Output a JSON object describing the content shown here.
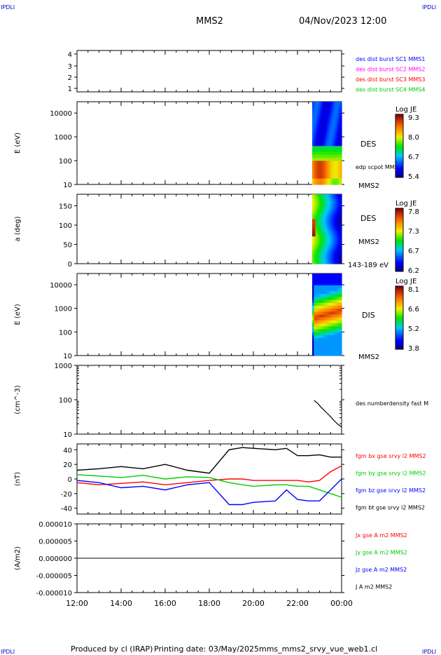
{
  "header": {
    "corner_label": "IPDLI",
    "spacecraft": "MMS2",
    "datetime": "04/Nov/2023 12:00"
  },
  "footer": {
    "produced_by": "Produced by cl (IRAP)",
    "printing_date": "Printing date: 03/May/2025",
    "filename": "mms_mms2_srvy_vue_web1.cl"
  },
  "chart_data": [
    {
      "type": "table",
      "panel": "burst coverage",
      "yticks": [
        "4",
        "3",
        "2",
        "1"
      ],
      "legend": [
        {
          "label": "des dist burst SC1 MMS1",
          "color": "#0000ff"
        },
        {
          "label": "des dist burst SC2 MMS2",
          "color": "#ff00ff"
        },
        {
          "label": "des dist burst SC3 MMS3",
          "color": "#ff0000"
        },
        {
          "label": "des dist burst SC4 MMS4",
          "color": "#00cc00"
        }
      ]
    },
    {
      "type": "heatmap",
      "panel": "DES energy spectrogram",
      "ylabel": "E (eV)",
      "yscale": "log",
      "ylim": [
        10,
        30000
      ],
      "yticks": [
        "10000",
        "1000",
        "100",
        "10"
      ],
      "data_x_range": [
        "22:40",
        "24:00"
      ],
      "right_labels": [
        "DES",
        "edp scpot MMS2",
        "MMS2"
      ],
      "colorbar": {
        "title": "Log JE",
        "ticks": [
          "9.3",
          "8.0",
          "6.7",
          "5.4"
        ]
      }
    },
    {
      "type": "heatmap",
      "panel": "DES pitch angle",
      "ylabel": "a (deg)",
      "ylim": [
        0,
        180
      ],
      "yticks": [
        "150",
        "100",
        "50",
        "0"
      ],
      "data_x_range": [
        "22:40",
        "24:00"
      ],
      "right_labels": [
        "DES",
        "MMS2",
        "143-189 eV"
      ],
      "colorbar": {
        "title": "Log JE",
        "ticks": [
          "7.8",
          "7.3",
          "6.7",
          "6.2"
        ]
      }
    },
    {
      "type": "heatmap",
      "panel": "DIS energy spectrogram",
      "ylabel": "E (eV)",
      "yscale": "log",
      "ylim": [
        10,
        30000
      ],
      "yticks": [
        "10000",
        "1000",
        "100",
        "10"
      ],
      "data_x_range": [
        "22:40",
        "24:00"
      ],
      "right_labels": [
        "DIS",
        "MMS2"
      ],
      "colorbar": {
        "title": "Log JE",
        "ticks": [
          "8.1",
          "6.6",
          "5.2",
          "3.8"
        ]
      }
    },
    {
      "type": "line",
      "panel": "density",
      "ylabel": "(cm^-3)",
      "yscale": "log",
      "ylim": [
        10,
        1000
      ],
      "yticks": [
        "1000",
        "100",
        "10"
      ],
      "series": [
        {
          "name": "des numberdensity fast M",
          "color": "#000000",
          "x": [
            22.75,
            22.9,
            23.05,
            23.2,
            23.35,
            23.5,
            23.65,
            23.8,
            24.0
          ],
          "values": [
            95,
            80,
            62,
            50,
            40,
            32,
            25,
            20,
            16
          ]
        }
      ]
    },
    {
      "type": "line",
      "panel": "magnetic field",
      "ylabel": "(nT)",
      "ylim": [
        -48,
        48
      ],
      "yticks": [
        "40",
        "20",
        "0",
        "-20",
        "-40"
      ],
      "x": [
        12,
        13,
        14,
        15,
        16,
        17,
        18,
        18.9,
        19.5,
        20,
        21,
        21.5,
        22,
        22.5,
        23,
        23.5,
        24
      ],
      "series": [
        {
          "name": "fgm bx gse srvy l2 MMS2",
          "color": "#ff0000",
          "values": [
            -5,
            -8,
            -6,
            -4,
            -8,
            -5,
            -2,
            0,
            0,
            -2,
            -2,
            -2,
            -2,
            -4,
            -2,
            10,
            18
          ]
        },
        {
          "name": "fgm by gse srvy l2 MMS2",
          "color": "#00cc00",
          "values": [
            6,
            4,
            2,
            5,
            0,
            3,
            2,
            -5,
            -8,
            -10,
            -8,
            -8,
            -10,
            -10,
            -15,
            -20,
            -25
          ]
        },
        {
          "name": "fgm bz gse srvy l2 MMS2",
          "color": "#0000ff",
          "values": [
            -2,
            -5,
            -12,
            -10,
            -15,
            -8,
            -5,
            -35,
            -35,
            -32,
            -30,
            -15,
            -28,
            -30,
            -30,
            -15,
            0
          ]
        },
        {
          "name": "fgm bt gse srvy l2 MMS2",
          "color": "#000000",
          "values": [
            12,
            14,
            17,
            14,
            20,
            12,
            8,
            40,
            43,
            42,
            40,
            42,
            32,
            32,
            33,
            30,
            30
          ]
        }
      ]
    },
    {
      "type": "line",
      "panel": "current density",
      "ylabel": "(A/m2)",
      "ylim": [
        -1e-05,
        1e-05
      ],
      "yticks": [
        "0.000010",
        "0.000005",
        "0.000000",
        "-0.000005",
        "-0.000010"
      ],
      "series": [
        {
          "name": "Jx gse A m2 MMS2",
          "color": "#ff0000"
        },
        {
          "name": "Jy gse A m2 MMS2",
          "color": "#00cc00"
        },
        {
          "name": "Jz gse A m2 MMS2",
          "color": "#0000ff"
        },
        {
          "name": "J A m2 MMS2",
          "color": "#000000"
        }
      ]
    }
  ],
  "x_axis": {
    "ticks": [
      "12:00",
      "14:00",
      "16:00",
      "18:00",
      "20:00",
      "22:00",
      "00:00"
    ],
    "range_hours": [
      12,
      24
    ]
  }
}
